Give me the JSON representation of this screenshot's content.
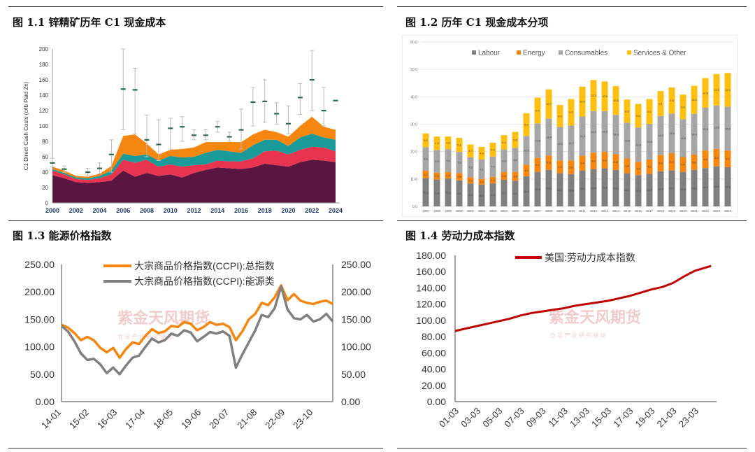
{
  "titles": {
    "c1": "图 1.1  锌精矿历年 C1 现金成本",
    "c2": "图 1.2  历年 C1 现金成本分项",
    "c3": "图 1.3  能源价格指数",
    "c4": "图 1.4  劳动力成本指数"
  },
  "watermark": {
    "name": "紫金天风期货",
    "slogan": "立 足 产 业   研 究 驱 动"
  },
  "colors": {
    "plum": "#5a1540",
    "red": "#e8344f",
    "teal": "#1a9a98",
    "orange": "#f5860f",
    "gray": "#a6a6a6",
    "yellow": "#fdc010",
    "dgray": "#808080",
    "dark_red": "#c00000",
    "error_green": "#2e6b4a"
  },
  "chart_data": [
    {
      "id": "c1",
      "type": "area",
      "ylabel": "C1 Direct Cash Costs (c/lb Paid Zn)",
      "ylim": [
        0,
        200
      ],
      "yticks": [
        "0",
        "20",
        "40",
        "60",
        "80",
        "100",
        "120",
        "140",
        "160",
        "180",
        "200"
      ],
      "xticks": [
        "2000",
        "2002",
        "2004",
        "2006",
        "2008",
        "2010",
        "2012",
        "2014",
        "2016",
        "2018",
        "2020",
        "2022",
        "2024"
      ],
      "x": [
        2000,
        2001,
        2002,
        2003,
        2004,
        2005,
        2006,
        2007,
        2008,
        2009,
        2010,
        2011,
        2012,
        2013,
        2014,
        2015,
        2016,
        2017,
        2018,
        2019,
        2020,
        2021,
        2022,
        2023,
        2024
      ],
      "series": [
        {
          "values": [
            36,
            32,
            27,
            26,
            27,
            29,
            42,
            34,
            39,
            35,
            37,
            33,
            39,
            43,
            46,
            45,
            44,
            46,
            51,
            49,
            47,
            53,
            56,
            55,
            53
          ]
        },
        {
          "values": [
            6,
            5,
            4,
            4,
            5,
            8,
            14,
            18,
            17,
            12,
            13,
            14,
            10,
            7,
            9,
            9,
            10,
            12,
            16,
            19,
            16,
            16,
            17,
            17,
            14
          ]
        },
        {
          "values": [
            2,
            2,
            2,
            2,
            3,
            5,
            8,
            9,
            7,
            8,
            11,
            12,
            11,
            15,
            14,
            13,
            11,
            17,
            15,
            14,
            11,
            16,
            17,
            13,
            15
          ]
        },
        {
          "values": [
            3,
            3,
            2,
            2,
            3,
            6,
            23,
            28,
            14,
            8,
            8,
            11,
            12,
            14,
            10,
            12,
            14,
            14,
            13,
            10,
            12,
            15,
            22,
            14,
            13
          ]
        }
      ],
      "error_bars": [
        {
          "x": 2000,
          "y": 52,
          "lo": 47,
          "hi": 58
        },
        {
          "x": 2001,
          "y": 44,
          "lo": 40,
          "hi": 48
        },
        {
          "x": 2003,
          "y": 40,
          "lo": 35,
          "hi": 45
        },
        {
          "x": 2004,
          "y": 45,
          "lo": 38,
          "hi": 52
        },
        {
          "x": 2005,
          "y": 63,
          "lo": 40,
          "hi": 82
        },
        {
          "x": 2006,
          "y": 148,
          "lo": 95,
          "hi": 200
        },
        {
          "x": 2007,
          "y": 147,
          "lo": 90,
          "hi": 175
        },
        {
          "x": 2008,
          "y": 82,
          "lo": 60,
          "hi": 114
        },
        {
          "x": 2009,
          "y": 76,
          "lo": 55,
          "hi": 108
        },
        {
          "x": 2010,
          "y": 97,
          "lo": 70,
          "hi": 110
        },
        {
          "x": 2011,
          "y": 99,
          "lo": 80,
          "hi": 112
        },
        {
          "x": 2012,
          "y": 88,
          "lo": 82,
          "hi": 95
        },
        {
          "x": 2013,
          "y": 88,
          "lo": 82,
          "hi": 95
        },
        {
          "x": 2014,
          "y": 99,
          "lo": 92,
          "hi": 106
        },
        {
          "x": 2015,
          "y": 86,
          "lo": 80,
          "hi": 92
        },
        {
          "x": 2016,
          "y": 95,
          "lo": 70,
          "hi": 122
        },
        {
          "x": 2017,
          "y": 131,
          "lo": 100,
          "hi": 150
        },
        {
          "x": 2018,
          "y": 132,
          "lo": 105,
          "hi": 160
        },
        {
          "x": 2019,
          "y": 116,
          "lo": 102,
          "hi": 130
        },
        {
          "x": 2020,
          "y": 103,
          "lo": 90,
          "hi": 126
        },
        {
          "x": 2021,
          "y": 137,
          "lo": 115,
          "hi": 155
        },
        {
          "x": 2022,
          "y": 160,
          "lo": 120,
          "hi": 198
        },
        {
          "x": 2023,
          "y": 120,
          "lo": 100,
          "hi": 150
        },
        {
          "x": 2024,
          "y": 133,
          "lo": 133,
          "hi": 133
        }
      ]
    },
    {
      "id": "c2",
      "type": "bar",
      "legend": [
        "Labour",
        "Energy",
        "Consumables",
        "Services & Other"
      ],
      "ylim": [
        0,
        60
      ],
      "yticks": [
        "0.0",
        "10.0",
        "20.0",
        "30.0",
        "40.0",
        "50.0",
        "60.0"
      ],
      "categories": [
        "1997",
        "1998",
        "1999",
        "2000",
        "2001",
        "2002",
        "2003",
        "2004",
        "2005",
        "2006",
        "2007",
        "2008",
        "2009",
        "2010",
        "2011",
        "2012",
        "2013",
        "2014",
        "2015",
        "2016",
        "2017",
        "2018",
        "2019",
        "2020",
        "2021",
        "2022",
        "2023",
        "2024"
      ],
      "series": [
        {
          "name": "Labour",
          "values": [
            10.3,
            9.8,
            10.2,
            9.5,
            8.4,
            8.0,
            8.4,
            9.7,
            9.4,
            11.0,
            12.6,
            13.3,
            12.1,
            11.8,
            13.1,
            13.6,
            13.9,
            13.3,
            12.1,
            11.4,
            11.9,
            12.8,
            13.2,
            12.6,
            13.3,
            14.0,
            14.6,
            14.3
          ]
        },
        {
          "name": "Energy",
          "values": [
            2.7,
            2.5,
            2.3,
            2.6,
            2.2,
            2.0,
            2.4,
            2.8,
            3.2,
            4.2,
            5.1,
            5.3,
            4.7,
            5.0,
            5.4,
            6.0,
            6.0,
            5.8,
            5.4,
            4.8,
            5.2,
            6.0,
            6.2,
            5.4,
            5.6,
            6.4,
            6.4,
            6.1
          ]
        },
        {
          "name": "Consumables",
          "values": [
            8.6,
            8.3,
            8.4,
            7.8,
            7.3,
            7.1,
            7.4,
            8.3,
            8.8,
            10.5,
            12.6,
            13.4,
            12.2,
            12.7,
            14.3,
            15.2,
            14.9,
            14.3,
            13.0,
            12.6,
            13.0,
            14.2,
            14.5,
            13.8,
            14.9,
            15.6,
            15.8,
            16.0
          ]
        },
        {
          "name": "Services & Other",
          "values": [
            5.0,
            4.9,
            4.6,
            5.1,
            4.7,
            4.6,
            5.0,
            5.2,
            5.8,
            8.3,
            9.4,
            10.7,
            8.0,
            9.7,
            10.9,
            11.3,
            10.8,
            10.5,
            8.5,
            8.6,
            9.1,
            9.1,
            9.5,
            9.0,
            10.2,
            10.8,
            11.5,
            12.3
          ]
        }
      ]
    },
    {
      "id": "c3",
      "type": "line",
      "legend": [
        "大宗商品价格指数(CCPI):总指数",
        "大宗商品价格指数(CCPI):能源类"
      ],
      "ylim": [
        0,
        250
      ],
      "yticks_left": [
        "0.00",
        "50.00",
        "100.00",
        "150.00",
        "200.00",
        "250.00"
      ],
      "yticks_right": [
        "0.00",
        "50.00",
        "100.00",
        "150.00",
        "200.00",
        "250.00"
      ],
      "xticks": [
        "14-01",
        "15-02",
        "16-03",
        "17-04",
        "18-05",
        "19-06",
        "20-07",
        "21-08",
        "22-09",
        "23-10"
      ],
      "x_index": [
        0,
        3,
        6,
        9,
        12,
        15,
        18,
        21,
        24,
        27,
        30,
        33,
        36,
        39,
        42,
        45,
        48,
        51,
        54,
        57,
        60,
        63,
        66,
        69,
        72,
        75,
        78,
        81,
        84,
        87,
        90,
        93,
        96,
        99,
        102,
        105,
        108,
        111,
        114,
        117,
        120,
        123,
        126
      ],
      "series": [
        {
          "name": "大宗商品价格指数(CCPI):总指数",
          "values": [
            140,
            135,
            125,
            112,
            118,
            112,
            98,
            90,
            98,
            80,
            96,
            108,
            105,
            120,
            132,
            125,
            128,
            138,
            136,
            145,
            142,
            130,
            136,
            145,
            140,
            142,
            136,
            112,
            128,
            150,
            160,
            180,
            176,
            190,
            212,
            185,
            196,
            184,
            180,
            178,
            182,
            184,
            178
          ]
        },
        {
          "name": "大宗商品价格指数(CCPI):能源类",
          "values": [
            138,
            128,
            110,
            88,
            76,
            78,
            68,
            52,
            62,
            50,
            66,
            80,
            84,
            100,
            115,
            108,
            112,
            124,
            120,
            130,
            126,
            110,
            118,
            127,
            124,
            128,
            120,
            62,
            86,
            108,
            130,
            158,
            154,
            170,
            210,
            168,
            152,
            150,
            158,
            146,
            150,
            160,
            146
          ]
        }
      ]
    },
    {
      "id": "c4",
      "type": "line",
      "legend": [
        "美国:劳动力成本指数"
      ],
      "ylim": [
        0,
        180
      ],
      "yticks": [
        "0.00",
        "20.00",
        "40.00",
        "60.00",
        "80.00",
        "100.00",
        "120.00",
        "140.00",
        "160.00",
        "180.00"
      ],
      "xticks": [
        "01-03",
        "03-03",
        "05-03",
        "07-03",
        "09-03",
        "11-03",
        "13-03",
        "15-03",
        "17-03",
        "19-03",
        "21-03",
        "23-03"
      ],
      "x": [
        2001,
        2002,
        2003,
        2004,
        2005,
        2006,
        2007,
        2008,
        2009,
        2010,
        2011,
        2012,
        2013,
        2014,
        2015,
        2016,
        2017,
        2018,
        2019,
        2020,
        2021,
        2022,
        2023,
        2024.5
      ],
      "series": [
        {
          "name": "美国:劳动力成本指数",
          "values": [
            87,
            90,
            93,
            96,
            99,
            102,
            106,
            109,
            111,
            113,
            115,
            118,
            120,
            122,
            124,
            127,
            130,
            134,
            138,
            141,
            146,
            154,
            161,
            167
          ]
        }
      ]
    }
  ]
}
